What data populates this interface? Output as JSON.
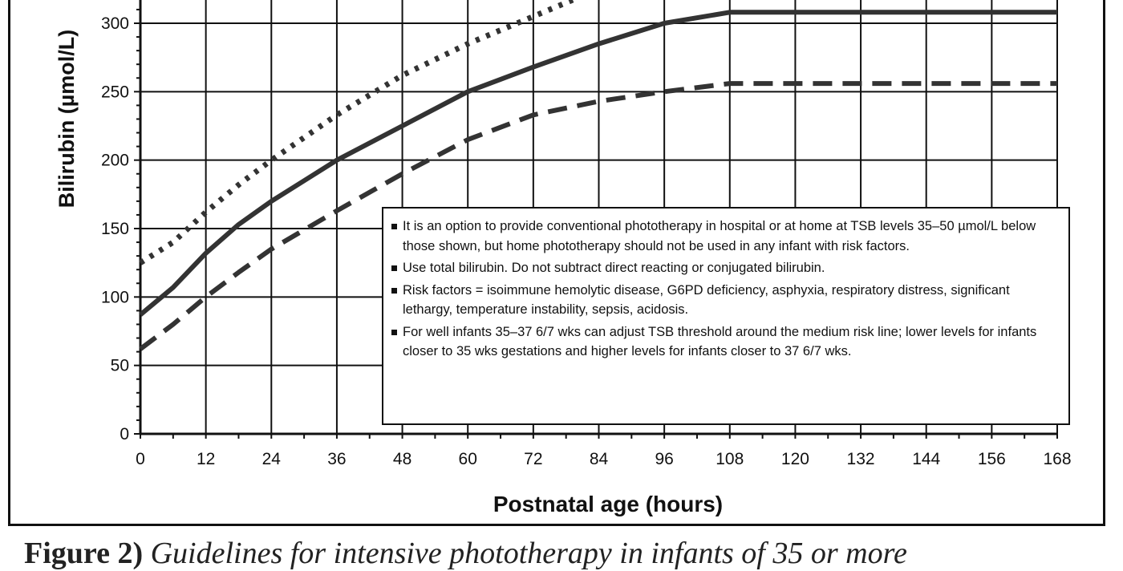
{
  "chart_data": {
    "type": "line",
    "xlabel": "Postnatal age (hours)",
    "ylabel": "Bilirubin (µmol/L)",
    "xlim": [
      0,
      168
    ],
    "ylim": [
      0,
      310
    ],
    "x_ticks": [
      0,
      12,
      24,
      36,
      48,
      60,
      72,
      84,
      96,
      108,
      120,
      132,
      144,
      156,
      168
    ],
    "y_ticks": [
      0,
      50,
      100,
      150,
      200,
      250,
      300
    ],
    "grid": true,
    "series": [
      {
        "style": "dotted",
        "points": [
          [
            0,
            125
          ],
          [
            6,
            140
          ],
          [
            12,
            162
          ],
          [
            18,
            182
          ],
          [
            24,
            200
          ],
          [
            36,
            233
          ],
          [
            48,
            262
          ],
          [
            60,
            285
          ],
          [
            72,
            305
          ],
          [
            84,
            325
          ]
        ]
      },
      {
        "style": "solid",
        "points": [
          [
            0,
            87
          ],
          [
            6,
            107
          ],
          [
            12,
            132
          ],
          [
            18,
            153
          ],
          [
            24,
            170
          ],
          [
            36,
            200
          ],
          [
            48,
            225
          ],
          [
            60,
            250
          ],
          [
            72,
            268
          ],
          [
            84,
            285
          ],
          [
            96,
            300
          ],
          [
            108,
            308
          ],
          [
            168,
            308
          ]
        ]
      },
      {
        "style": "dashed",
        "points": [
          [
            0,
            62
          ],
          [
            6,
            80
          ],
          [
            12,
            100
          ],
          [
            18,
            118
          ],
          [
            24,
            135
          ],
          [
            36,
            163
          ],
          [
            48,
            190
          ],
          [
            60,
            215
          ],
          [
            72,
            233
          ],
          [
            84,
            243
          ],
          [
            96,
            250
          ],
          [
            108,
            256
          ],
          [
            168,
            256
          ]
        ]
      }
    ]
  },
  "notes": [
    "It is an option to provide conventional phototherapy in hospital or at home at TSB levels 35–50 µmol/L below those shown, but home phototherapy should not be used in any infant with risk factors.",
    "Use total bilirubin. Do not subtract direct reacting or conjugated bilirubin.",
    "Risk factors = isoimmune hemolytic disease, G6PD deficiency, asphyxia, respiratory distress, significant lethargy, temperature instability, sepsis, acidosis.",
    "For well infants 35–37 6/7 wks can adjust TSB threshold around the medium risk line; lower levels for infants closer to 35 wks gestations and higher levels for infants closer to 37 6/7 wks."
  ],
  "caption": {
    "label": "Figure 2)",
    "text": "Guidelines for intensive phototherapy in infants of 35 or more"
  }
}
